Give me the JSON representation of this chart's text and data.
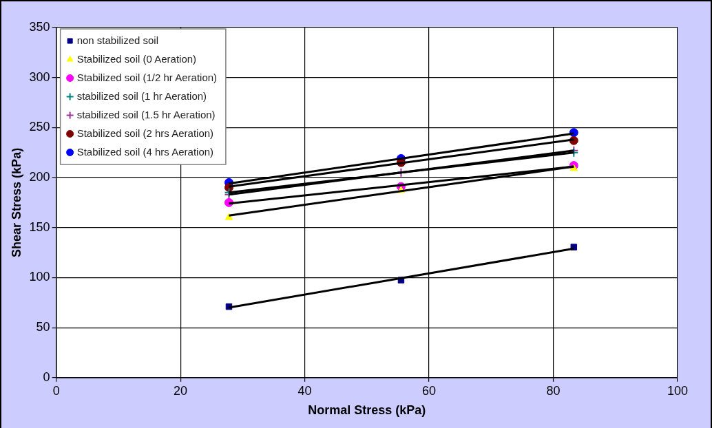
{
  "chart_data": {
    "type": "scatter",
    "xlabel": "Normal Stress (kPa)",
    "ylabel": "Shear Stress (kPa)",
    "x": [
      27.8,
      55.5,
      83.3
    ],
    "series": [
      {
        "name": "non stabilized soil",
        "color": "#000080",
        "marker": "square",
        "values": [
          71,
          97.5,
          130.5
        ]
      },
      {
        "name": "Stabilized soil (0 Aeration)",
        "color": "#ffff00",
        "marker": "triangle",
        "values": [
          160,
          187,
          209
        ]
      },
      {
        "name": "Stabilized soil (1/2 hr Aeration)",
        "color": "#ff00ff",
        "marker": "circle",
        "values": [
          175,
          191,
          212
        ]
      },
      {
        "name": "stabilized soil (1 hr Aeration)",
        "color": "#008080",
        "marker": "cross",
        "values": [
          185,
          null,
          225
        ]
      },
      {
        "name": "stabilized soil (1.5 hr Aeration)",
        "color": "#993399",
        "marker": "cross",
        "values": [
          183,
          205,
          227
        ]
      },
      {
        "name": "Stabilized soil (2 hrs Aeration)",
        "color": "#800000",
        "marker": "circle",
        "values": [
          190,
          215,
          237
        ]
      },
      {
        "name": "Stabilized soil (4 hrs Aeration)",
        "color": "#0000ff",
        "marker": "circle",
        "values": [
          195,
          219,
          245
        ]
      },
      {
        "type": "line",
        "color": "#000000",
        "marker": "none",
        "values": [
          70,
          99.5,
          129
        ]
      },
      {
        "type": "line",
        "color": "#000000",
        "marker": "none",
        "values": [
          162,
          186.5,
          211
        ]
      },
      {
        "type": "line",
        "color": "#000000",
        "marker": "none",
        "values": [
          174,
          192.5,
          211
        ]
      },
      {
        "type": "line",
        "color": "#000000",
        "marker": "none",
        "values": [
          185,
          205,
          225
        ]
      },
      {
        "type": "line",
        "color": "#000000",
        "marker": "none",
        "values": [
          183,
          205,
          227
        ]
      },
      {
        "type": "line",
        "color": "#000000",
        "marker": "none",
        "values": [
          191,
          214.5,
          238
        ]
      },
      {
        "type": "line",
        "color": "#000000",
        "marker": "none",
        "values": [
          194,
          219,
          244
        ]
      }
    ],
    "xlim": [
      0,
      100
    ],
    "xticks": [
      0,
      20,
      40,
      60,
      80,
      100
    ],
    "ylim": [
      0,
      350
    ],
    "yticks": [
      0,
      50,
      100,
      150,
      200,
      250,
      300,
      350
    ],
    "grid": true,
    "legend": "top left"
  }
}
